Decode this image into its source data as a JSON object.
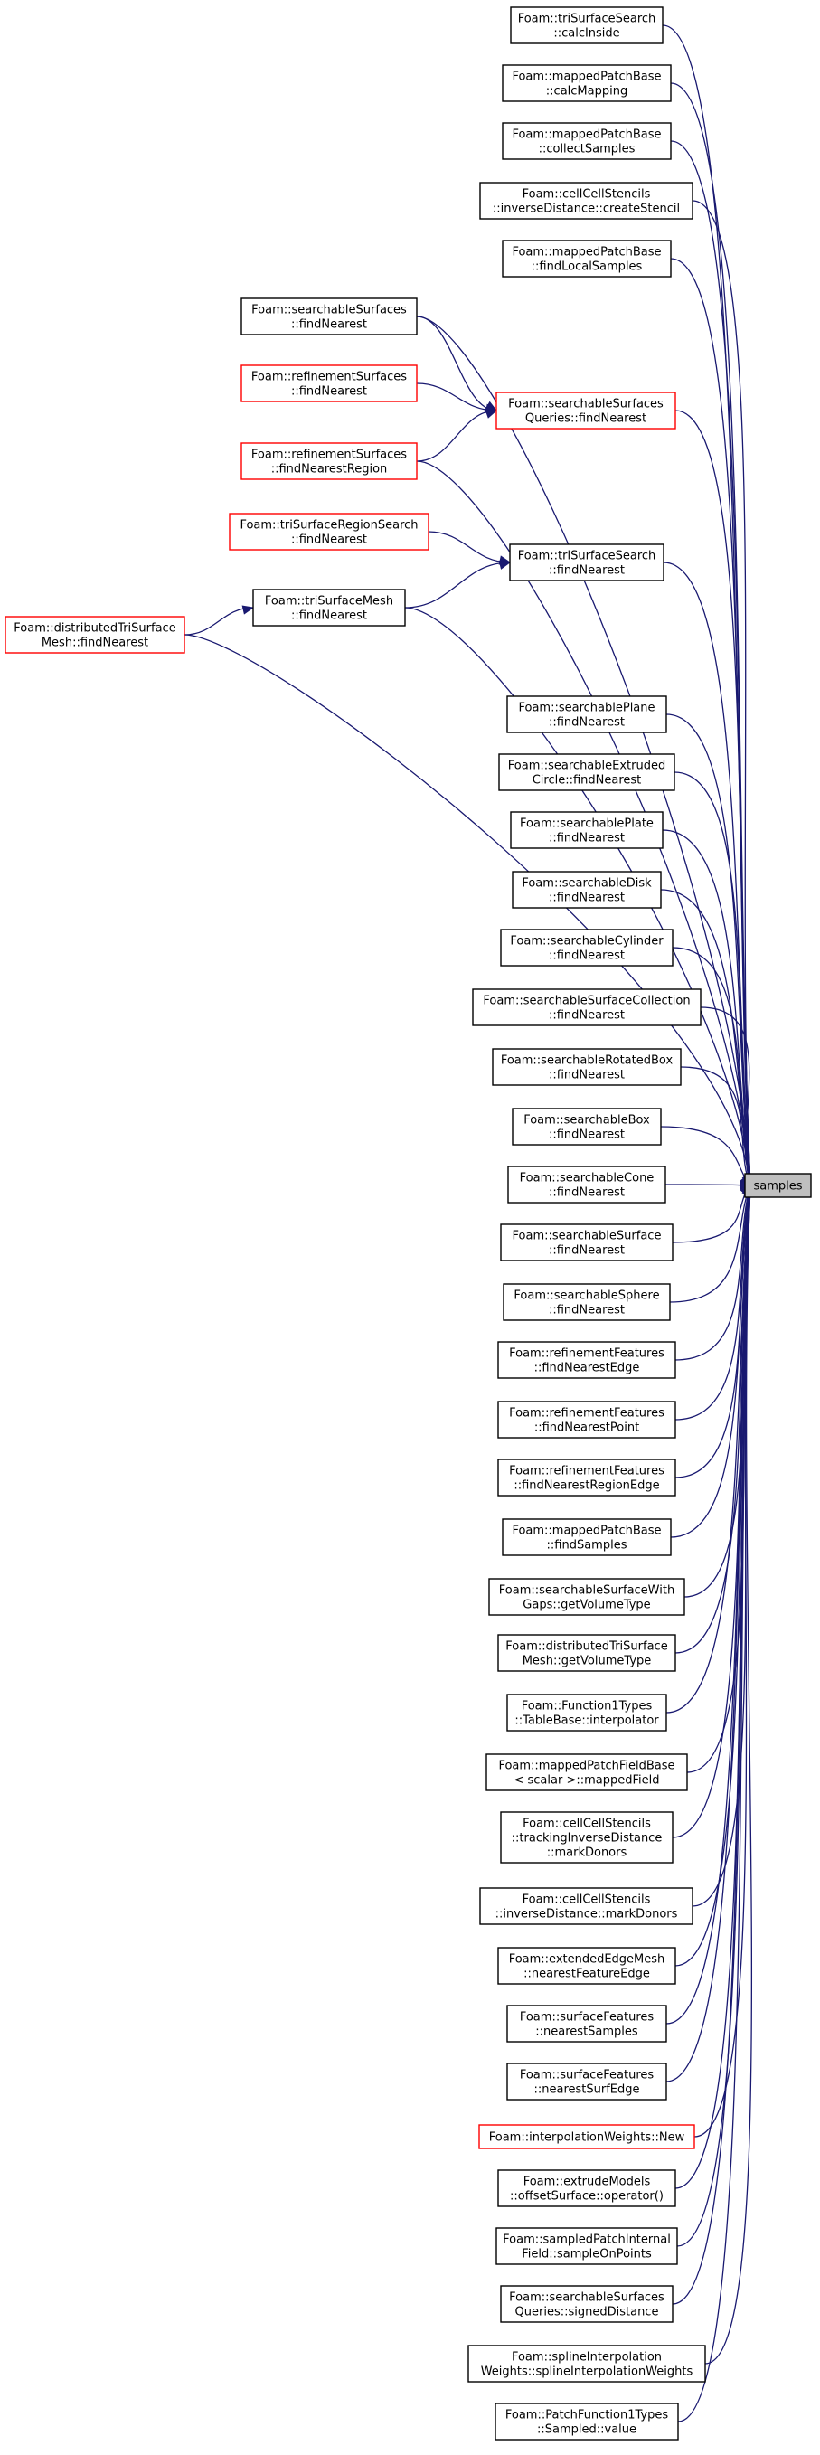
{
  "target": {
    "id": "samples",
    "label": "samples"
  },
  "nodes": [
    {
      "id": "n1",
      "lines": [
        "Foam::triSurfaceSearch",
        "::calcInside"
      ]
    },
    {
      "id": "n2",
      "lines": [
        "Foam::mappedPatchBase",
        "::calcMapping"
      ]
    },
    {
      "id": "n3",
      "lines": [
        "Foam::mappedPatchBase",
        "::collectSamples"
      ]
    },
    {
      "id": "n4",
      "lines": [
        "Foam::cellCellStencils",
        "::inverseDistance::createStencil"
      ]
    },
    {
      "id": "n5",
      "lines": [
        "Foam::mappedPatchBase",
        "::findLocalSamples"
      ]
    },
    {
      "id": "n6",
      "lines": [
        "Foam::searchableSurfaces",
        "::findNearest"
      ]
    },
    {
      "id": "n7",
      "lines": [
        "Foam::refinementSurfaces",
        "::findNearest"
      ],
      "red": true
    },
    {
      "id": "n8",
      "lines": [
        "Foam::searchableSurfaces",
        "Queries::findNearest"
      ],
      "red": true
    },
    {
      "id": "n9",
      "lines": [
        "Foam::refinementSurfaces",
        "::findNearestRegion"
      ],
      "red": true
    },
    {
      "id": "n10",
      "lines": [
        "Foam::triSurfaceRegionSearch",
        "::findNearest"
      ],
      "red": true
    },
    {
      "id": "n11",
      "lines": [
        "Foam::triSurfaceSearch",
        "::findNearest"
      ]
    },
    {
      "id": "n12",
      "lines": [
        "Foam::triSurfaceMesh",
        "::findNearest"
      ]
    },
    {
      "id": "n13",
      "lines": [
        "Foam::distributedTriSurface",
        "Mesh::findNearest"
      ],
      "red": true
    },
    {
      "id": "n14",
      "lines": [
        "Foam::searchablePlane",
        "::findNearest"
      ]
    },
    {
      "id": "n15",
      "lines": [
        "Foam::searchableExtruded",
        "Circle::findNearest"
      ]
    },
    {
      "id": "n16",
      "lines": [
        "Foam::searchablePlate",
        "::findNearest"
      ]
    },
    {
      "id": "n17",
      "lines": [
        "Foam::searchableDisk",
        "::findNearest"
      ]
    },
    {
      "id": "n18",
      "lines": [
        "Foam::searchableCylinder",
        "::findNearest"
      ]
    },
    {
      "id": "n19",
      "lines": [
        "Foam::searchableSurfaceCollection",
        "::findNearest"
      ]
    },
    {
      "id": "n20",
      "lines": [
        "Foam::searchableRotatedBox",
        "::findNearest"
      ]
    },
    {
      "id": "n21",
      "lines": [
        "Foam::searchableBox",
        "::findNearest"
      ]
    },
    {
      "id": "n22",
      "lines": [
        "Foam::searchableCone",
        "::findNearest"
      ]
    },
    {
      "id": "n23",
      "lines": [
        "Foam::searchableSurface",
        "::findNearest"
      ]
    },
    {
      "id": "n24",
      "lines": [
        "Foam::searchableSphere",
        "::findNearest"
      ]
    },
    {
      "id": "n25",
      "lines": [
        "Foam::refinementFeatures",
        "::findNearestEdge"
      ]
    },
    {
      "id": "n26",
      "lines": [
        "Foam::refinementFeatures",
        "::findNearestPoint"
      ]
    },
    {
      "id": "n27",
      "lines": [
        "Foam::refinementFeatures",
        "::findNearestRegionEdge"
      ]
    },
    {
      "id": "n28",
      "lines": [
        "Foam::mappedPatchBase",
        "::findSamples"
      ]
    },
    {
      "id": "n29",
      "lines": [
        "Foam::searchableSurfaceWith",
        "Gaps::getVolumeType"
      ]
    },
    {
      "id": "n30",
      "lines": [
        "Foam::distributedTriSurface",
        "Mesh::getVolumeType"
      ]
    },
    {
      "id": "n31",
      "lines": [
        "Foam::Function1Types",
        "::TableBase::interpolator"
      ]
    },
    {
      "id": "n32",
      "lines": [
        "Foam::mappedPatchFieldBase",
        "< scalar >::mappedField"
      ]
    },
    {
      "id": "n33",
      "lines": [
        "Foam::cellCellStencils",
        "::trackingInverseDistance",
        "::markDonors"
      ]
    },
    {
      "id": "n34",
      "lines": [
        "Foam::cellCellStencils",
        "::inverseDistance::markDonors"
      ]
    },
    {
      "id": "n35",
      "lines": [
        "Foam::extendedEdgeMesh",
        "::nearestFeatureEdge"
      ]
    },
    {
      "id": "n36",
      "lines": [
        "Foam::surfaceFeatures",
        "::nearestSamples"
      ]
    },
    {
      "id": "n37",
      "lines": [
        "Foam::surfaceFeatures",
        "::nearestSurfEdge"
      ]
    },
    {
      "id": "n38",
      "lines": [
        "Foam::interpolationWeights::New"
      ],
      "red": true
    },
    {
      "id": "n39",
      "lines": [
        "Foam::extrudeModels",
        "::offsetSurface::operator()"
      ]
    },
    {
      "id": "n40",
      "lines": [
        "Foam::sampledPatchInternal",
        "Field::sampleOnPoints"
      ]
    },
    {
      "id": "n41",
      "lines": [
        "Foam::searchableSurfaces",
        "Queries::signedDistance"
      ]
    },
    {
      "id": "n42",
      "lines": [
        "Foam::splineInterpolation",
        "Weights::splineInterpolationWeights"
      ]
    },
    {
      "id": "n43",
      "lines": [
        "Foam::PatchFunction1Types",
        "::Sampled::value"
      ]
    }
  ],
  "edges": [
    [
      "n1",
      "samples"
    ],
    [
      "n2",
      "samples"
    ],
    [
      "n3",
      "samples"
    ],
    [
      "n4",
      "samples"
    ],
    [
      "n5",
      "samples"
    ],
    [
      "n6",
      "samples"
    ],
    [
      "n6",
      "n8"
    ],
    [
      "n7",
      "n8"
    ],
    [
      "n9",
      "n8"
    ],
    [
      "n8",
      "samples"
    ],
    [
      "n9",
      "samples"
    ],
    [
      "n10",
      "n11"
    ],
    [
      "n12",
      "n11"
    ],
    [
      "n11",
      "samples"
    ],
    [
      "n12",
      "samples"
    ],
    [
      "n13",
      "n12"
    ],
    [
      "n13",
      "samples"
    ],
    [
      "n14",
      "samples"
    ],
    [
      "n15",
      "samples"
    ],
    [
      "n16",
      "samples"
    ],
    [
      "n17",
      "samples"
    ],
    [
      "n18",
      "samples"
    ],
    [
      "n19",
      "samples"
    ],
    [
      "n20",
      "samples"
    ],
    [
      "n21",
      "samples"
    ],
    [
      "n22",
      "samples"
    ],
    [
      "n23",
      "samples"
    ],
    [
      "n24",
      "samples"
    ],
    [
      "n25",
      "samples"
    ],
    [
      "n26",
      "samples"
    ],
    [
      "n27",
      "samples"
    ],
    [
      "n28",
      "samples"
    ],
    [
      "n29",
      "samples"
    ],
    [
      "n30",
      "samples"
    ],
    [
      "n31",
      "samples"
    ],
    [
      "n32",
      "samples"
    ],
    [
      "n33",
      "samples"
    ],
    [
      "n34",
      "samples"
    ],
    [
      "n35",
      "samples"
    ],
    [
      "n36",
      "samples"
    ],
    [
      "n37",
      "samples"
    ],
    [
      "n38",
      "samples"
    ],
    [
      "n39",
      "samples"
    ],
    [
      "n40",
      "samples"
    ],
    [
      "n41",
      "samples"
    ],
    [
      "n42",
      "samples"
    ],
    [
      "n43",
      "samples"
    ]
  ],
  "colors": {
    "edge": "#191970",
    "border": "#000000",
    "border_highlight": "#ff0000",
    "target_fill": "#bfbfbf",
    "background": "#ffffff"
  }
}
